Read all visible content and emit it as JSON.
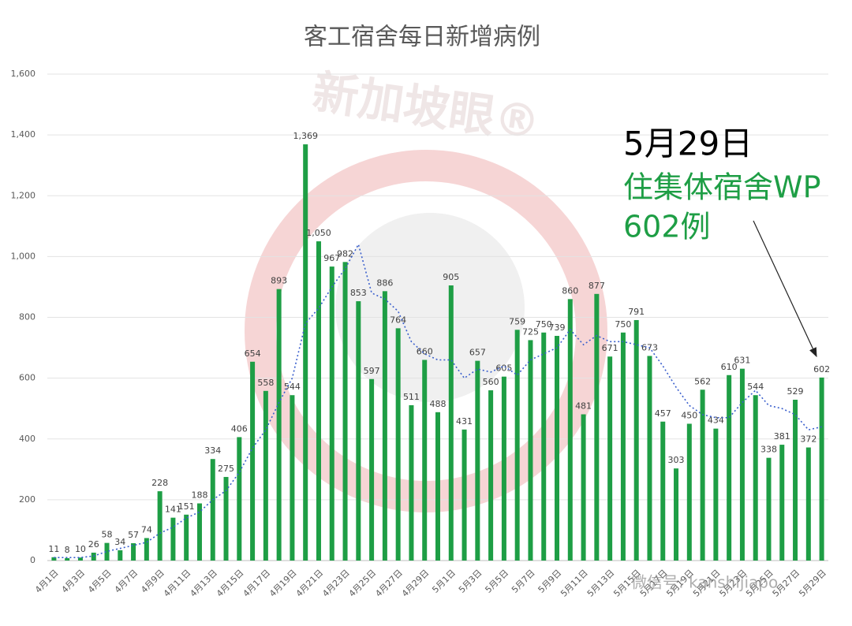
{
  "chart_data": {
    "type": "bar",
    "title": "客工宿舍每日新增病例",
    "categories": [
      "4月1日",
      null,
      "4月3日",
      null,
      "4月5日",
      null,
      "4月7日",
      null,
      "4月9日",
      null,
      "4月11日",
      null,
      "4月13日",
      null,
      "4月15日",
      null,
      "4月17日",
      null,
      "4月19日",
      null,
      "4月21日",
      null,
      "4月23日",
      null,
      "4月25日",
      null,
      "4月27日",
      null,
      "4月29日",
      null,
      "5月1日",
      null,
      "5月3日",
      null,
      "5月5日",
      null,
      "5月7日",
      null,
      "5月9日",
      null,
      "5月11日",
      null,
      "5月13日",
      null,
      "5月15日",
      null,
      "5月17日",
      null,
      "5月19日",
      null,
      "5月21日",
      null,
      "5月23日",
      null,
      "5月25日",
      null,
      "5月27日",
      null,
      "5月29日"
    ],
    "values": [
      11,
      8,
      10,
      26,
      58,
      34,
      57,
      74,
      228,
      141,
      151,
      188,
      334,
      275,
      406,
      654,
      558,
      893,
      544,
      1369,
      1050,
      967,
      982,
      853,
      597,
      886,
      764,
      511,
      660,
      488,
      905,
      431,
      657,
      560,
      605,
      759,
      725,
      750,
      739,
      860,
      481,
      877,
      671,
      750,
      791,
      673,
      457,
      303,
      450,
      562,
      434,
      610,
      631,
      544,
      338,
      381,
      529,
      372,
      602
    ],
    "value_labels": [
      "11",
      "8",
      "10",
      "26",
      "58",
      "34",
      "57",
      "74",
      "228",
      "141",
      "151",
      "188",
      "334",
      "275",
      "406",
      "654",
      "558",
      "893",
      "544",
      "1,369",
      "1,050",
      "967",
      "982",
      "853",
      "597",
      "886",
      "764",
      "511",
      "660",
      "488",
      "905",
      "431",
      "657",
      "560",
      "605",
      "759",
      "725",
      "750",
      "739",
      "860",
      "481",
      "877",
      "671",
      "750",
      "791",
      "673",
      "457",
      "303",
      "450",
      "562",
      "434",
      "610",
      "631",
      "544",
      "338",
      "381",
      "529",
      "372",
      "602"
    ],
    "color": "#1e9e45",
    "trend": {
      "color": "#3a5fcd",
      "values": [
        10,
        10,
        10,
        15,
        30,
        40,
        50,
        60,
        90,
        110,
        140,
        160,
        200,
        230,
        290,
        370,
        430,
        520,
        600,
        780,
        830,
        900,
        960,
        1040,
        880,
        860,
        820,
        720,
        680,
        660,
        660,
        600,
        630,
        620,
        640,
        610,
        660,
        680,
        700,
        760,
        710,
        740,
        720,
        720,
        710,
        700,
        640,
        570,
        510,
        480,
        470,
        470,
        520,
        560,
        510,
        500,
        480,
        430,
        440
      ]
    },
    "ylim": [
      0,
      1600
    ],
    "yticks": [
      0,
      {
        "value": 200,
        "label": "200"
      },
      400,
      600,
      800,
      {
        "value": 1000,
        "label": "1,000"
      },
      {
        "value": 1200,
        "label": "1,200"
      },
      {
        "value": 1400,
        "label": "1,400"
      },
      {
        "value": 1600,
        "label": "1,600"
      }
    ],
    "grid": true,
    "annotation": {
      "date": "5月29日",
      "line1": "住集体宿舍WP",
      "line2": "602例",
      "color": "#1e9e45"
    },
    "watermark": "新加坡眼®",
    "wechat": "微信号: kanshijiapo"
  }
}
